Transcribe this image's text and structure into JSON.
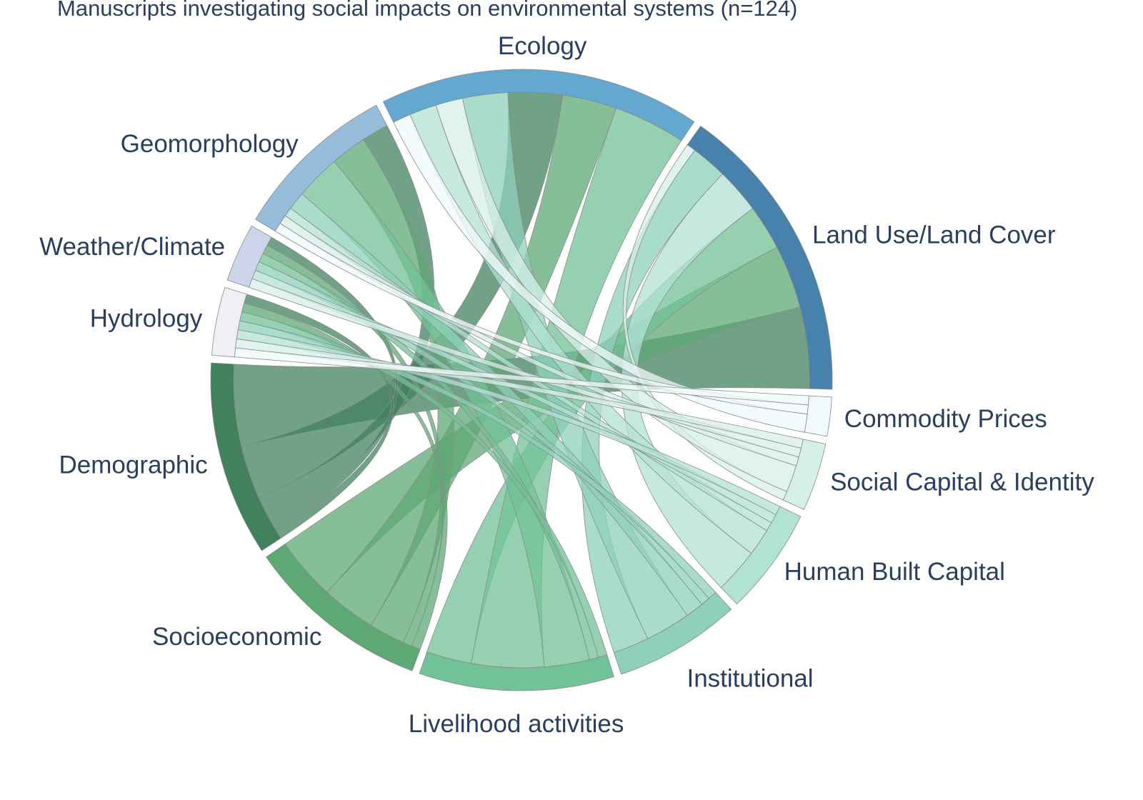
{
  "chart_data": {
    "type": "chord",
    "title": "Manuscripts investigating social impacts on environmental systems (n=124)",
    "nodes": [
      {
        "name": "Land Use/Land Cover",
        "group": "environmental",
        "color": "#4682ab"
      },
      {
        "name": "Ecology",
        "group": "environmental",
        "color": "#62a8cf"
      },
      {
        "name": "Geomorphology",
        "group": "environmental",
        "color": "#97bcdb"
      },
      {
        "name": "Weather/Climate",
        "group": "environmental",
        "color": "#cbd4e8"
      },
      {
        "name": "Hydrology",
        "group": "environmental",
        "color": "#f1eff6"
      },
      {
        "name": "Demographic",
        "group": "social",
        "color": "#41825d"
      },
      {
        "name": "Socioeconomic",
        "group": "social",
        "color": "#5ea874"
      },
      {
        "name": "Livelihood activities",
        "group": "social",
        "color": "#72c297"
      },
      {
        "name": "Institutional",
        "group": "social",
        "color": "#8ed0ba"
      },
      {
        "name": "Human Built Capital",
        "group": "social",
        "color": "#b2e2d4"
      },
      {
        "name": "Social Capital & Identity",
        "group": "social",
        "color": "#d7efe9"
      },
      {
        "name": "Commodity Prices",
        "group": "social",
        "color": "#f0f9fb"
      }
    ],
    "links": [
      {
        "source": "Demographic",
        "target": "Land Use/Land Cover",
        "value": 9
      },
      {
        "source": "Socioeconomic",
        "target": "Land Use/Land Cover",
        "value": 7
      },
      {
        "source": "Livelihood activities",
        "target": "Land Use/Land Cover",
        "value": 5
      },
      {
        "source": "Human Built Capital",
        "target": "Land Use/Land Cover",
        "value": 5
      },
      {
        "source": "Institutional",
        "target": "Land Use/Land Cover",
        "value": 4
      },
      {
        "source": "Social Capital & Identity",
        "target": "Land Use/Land Cover",
        "value": 1
      },
      {
        "source": "Livelihood activities",
        "target": "Ecology",
        "value": 8
      },
      {
        "source": "Socioeconomic",
        "target": "Ecology",
        "value": 6
      },
      {
        "source": "Demographic",
        "target": "Ecology",
        "value": 6
      },
      {
        "source": "Institutional",
        "target": "Ecology",
        "value": 5
      },
      {
        "source": "Social Capital & Identity",
        "target": "Ecology",
        "value": 3
      },
      {
        "source": "Human Built Capital",
        "target": "Ecology",
        "value": 3
      },
      {
        "source": "Commodity Prices",
        "target": "Ecology",
        "value": 2
      },
      {
        "source": "Demographic",
        "target": "Geomorphology",
        "value": 3
      },
      {
        "source": "Socioeconomic",
        "target": "Geomorphology",
        "value": 4
      },
      {
        "source": "Livelihood activities",
        "target": "Geomorphology",
        "value": 5
      },
      {
        "source": "Institutional",
        "target": "Geomorphology",
        "value": 2
      },
      {
        "source": "Human Built Capital",
        "target": "Geomorphology",
        "value": 1
      },
      {
        "source": "Social Capital & Identity",
        "target": "Geomorphology",
        "value": 1
      },
      {
        "source": "Commodity Prices",
        "target": "Geomorphology",
        "value": 1
      },
      {
        "source": "Demographic",
        "target": "Weather/Climate",
        "value": 1
      },
      {
        "source": "Socioeconomic",
        "target": "Weather/Climate",
        "value": 1
      },
      {
        "source": "Livelihood activities",
        "target": "Weather/Climate",
        "value": 1
      },
      {
        "source": "Institutional",
        "target": "Weather/Climate",
        "value": 1
      },
      {
        "source": "Human Built Capital",
        "target": "Weather/Climate",
        "value": 1
      },
      {
        "source": "Social Capital & Identity",
        "target": "Weather/Climate",
        "value": 1
      },
      {
        "source": "Demographic",
        "target": "Hydrology",
        "value": 1
      },
      {
        "source": "Socioeconomic",
        "target": "Hydrology",
        "value": 1
      },
      {
        "source": "Livelihood activities",
        "target": "Hydrology",
        "value": 1
      },
      {
        "source": "Institutional",
        "target": "Hydrology",
        "value": 1
      },
      {
        "source": "Human Built Capital",
        "target": "Hydrology",
        "value": 1
      },
      {
        "source": "Social Capital & Identity",
        "target": "Hydrology",
        "value": 1
      },
      {
        "source": "Commodity Prices",
        "target": "Hydrology",
        "value": 1
      }
    ]
  }
}
